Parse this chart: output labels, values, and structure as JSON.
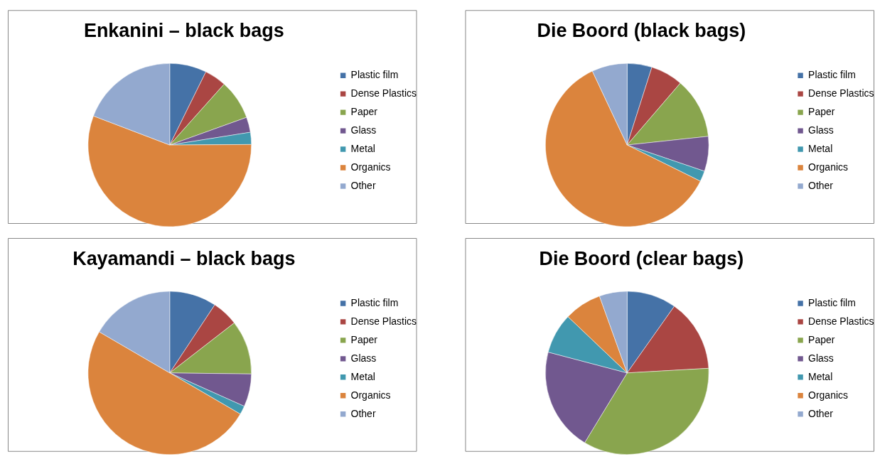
{
  "chart_data": [
    {
      "type": "pie",
      "title": "Enkanini – black bags",
      "legend": "right",
      "categories": [
        "Plastic film",
        "Dense Plastics",
        "Paper",
        "Glass",
        "Metal",
        "Organics",
        "Other"
      ],
      "values": [
        7.3,
        4.3,
        7.9,
        3.0,
        2.4,
        55.9,
        19.2
      ],
      "colors": [
        "#4572a7",
        "#aa4643",
        "#89a54e",
        "#71588f",
        "#4198af",
        "#db843d",
        "#93a9cf"
      ]
    },
    {
      "type": "pie",
      "title": "Die Boord (black bags)",
      "legend": "right",
      "categories": [
        "Plastic film",
        "Dense Plastics",
        "Paper",
        "Glass",
        "Metal",
        "Organics",
        "Other"
      ],
      "values": [
        4.9,
        6.4,
        12.0,
        6.9,
        2.1,
        60.7,
        7.0
      ],
      "colors": [
        "#4572a7",
        "#aa4643",
        "#89a54e",
        "#71588f",
        "#4198af",
        "#db843d",
        "#93a9cf"
      ]
    },
    {
      "type": "pie",
      "title": "Kayamandi – black bags",
      "legend": "right",
      "categories": [
        "Plastic film",
        "Dense Plastics",
        "Paper",
        "Glass",
        "Metal",
        "Organics",
        "Other"
      ],
      "values": [
        9.3,
        5.2,
        10.7,
        6.5,
        1.7,
        50.0,
        16.6
      ],
      "colors": [
        "#4572a7",
        "#aa4643",
        "#89a54e",
        "#71588f",
        "#4198af",
        "#db843d",
        "#93a9cf"
      ]
    },
    {
      "type": "pie",
      "title": "Die Boord (clear bags)",
      "legend": "right",
      "categories": [
        "Plastic film",
        "Dense Plastics",
        "Paper",
        "Glass",
        "Metal",
        "Organics",
        "Other"
      ],
      "values": [
        9.8,
        14.3,
        34.6,
        20.4,
        8.0,
        7.4,
        5.5
      ],
      "colors": [
        "#4572a7",
        "#aa4643",
        "#89a54e",
        "#71588f",
        "#4198af",
        "#db843d",
        "#93a9cf"
      ]
    }
  ]
}
